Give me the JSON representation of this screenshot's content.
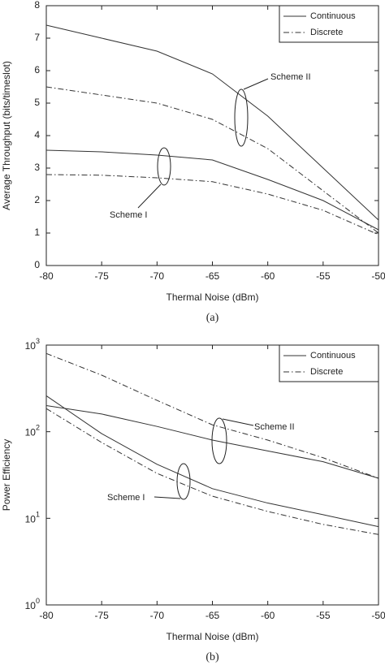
{
  "chart_data": [
    {
      "type": "line",
      "caption": "(a)",
      "xlabel": "Thermal Noise (dBm)",
      "ylabel": "Average Throughput (bits/timeslot)",
      "x": [
        -80,
        -75,
        -70,
        -65,
        -60,
        -55,
        -50
      ],
      "xlim": [
        -80,
        -50
      ],
      "xticks": [
        -80,
        -75,
        -70,
        -65,
        -60,
        -55,
        -50
      ],
      "ylim": [
        0,
        8
      ],
      "yticks": [
        0,
        1,
        2,
        3,
        4,
        5,
        6,
        7,
        8
      ],
      "yscale": "linear",
      "legend": "upper right",
      "series": [
        {
          "name": "Continuous",
          "color": "#333333",
          "dash": "solid",
          "values": [
            7.4,
            7.0,
            6.6,
            5.9,
            4.6,
            3.0,
            1.4
          ]
        },
        {
          "name": "Discrete",
          "color": "#333333",
          "dash": "dashdot",
          "values": [
            5.5,
            5.25,
            5.0,
            4.5,
            3.6,
            2.3,
            1.0
          ]
        },
        {
          "name": "Continuous",
          "color": "#333333",
          "dash": "solid",
          "values": [
            3.55,
            3.5,
            3.4,
            3.25,
            2.65,
            2.0,
            1.1
          ]
        },
        {
          "name": "Discrete",
          "color": "#333333",
          "dash": "dashdot",
          "values": [
            2.8,
            2.78,
            2.7,
            2.58,
            2.2,
            1.7,
            0.95
          ]
        }
      ],
      "annotations": [
        "Scheme II",
        "Scheme I"
      ]
    },
    {
      "type": "line",
      "caption": "(b)",
      "xlabel": "Thermal Noise (dBm)",
      "ylabel": "Power Efficiency",
      "x": [
        -80,
        -75,
        -70,
        -65,
        -60,
        -55,
        -50
      ],
      "xlim": [
        -80,
        -50
      ],
      "xticks": [
        -80,
        -75,
        -70,
        -65,
        -60,
        -55,
        -50
      ],
      "ylim": [
        1,
        1000
      ],
      "yscale": "log",
      "legend": "upper right",
      "yticks": [
        {
          "value": 1,
          "label": "10",
          "exponent": "0"
        },
        {
          "value": 10,
          "label": "10",
          "exponent": "1"
        },
        {
          "value": 100,
          "label": "10",
          "exponent": "2"
        },
        {
          "value": 1000,
          "label": "10",
          "exponent": "3"
        }
      ],
      "series": [
        {
          "name": "Continuous",
          "color": "#333333",
          "dash": "solid",
          "values": [
            200,
            160,
            115,
            80,
            60,
            45,
            29
          ]
        },
        {
          "name": "Discrete",
          "color": "#333333",
          "dash": "dashdot",
          "values": [
            800,
            450,
            230,
            120,
            80,
            50,
            29
          ]
        },
        {
          "name": "Continuous",
          "color": "#333333",
          "dash": "solid",
          "values": [
            260,
            95,
            42,
            22,
            15,
            11,
            8
          ]
        },
        {
          "name": "Discrete",
          "color": "#333333",
          "dash": "dashdot",
          "values": [
            185,
            75,
            33,
            18,
            12,
            8.5,
            6.5
          ]
        }
      ],
      "annotations": [
        "Scheme II",
        "Scheme I"
      ]
    }
  ]
}
